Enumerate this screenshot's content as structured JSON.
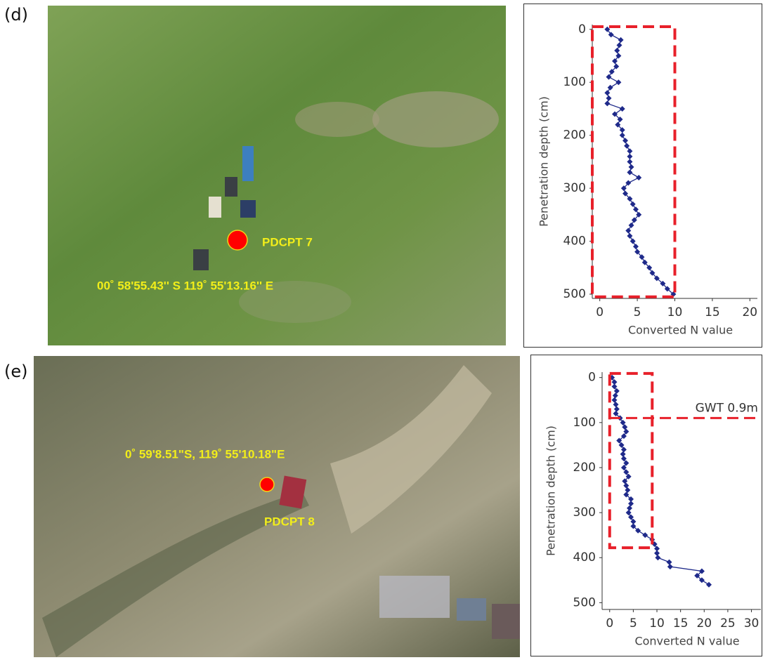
{
  "chart_data": [
    {
      "type": "line",
      "panel": "(d)",
      "x_label": "Converted N value",
      "y_label": "Penetration depth (cm)",
      "color": "#1f2a8a",
      "x": [
        1.0,
        1.5,
        2.8,
        2.6,
        2.3,
        2.5,
        2.0,
        2.2,
        1.6,
        1.2,
        2.5,
        1.4,
        1.0,
        1.2,
        1.0,
        3.0,
        2.0,
        2.7,
        2.4,
        3.0,
        3.0,
        3.4,
        3.6,
        4.0,
        4.0,
        4.0,
        4.2,
        4.0,
        5.2,
        3.8,
        3.2,
        3.4,
        4.0,
        4.4,
        4.8,
        5.2,
        4.6,
        4.2,
        3.8,
        4.0,
        4.4,
        4.8,
        5.0,
        5.6,
        6.0,
        6.6,
        7.0,
        7.6,
        8.4,
        9.0,
        9.8
      ],
      "y": [
        0,
        10,
        20,
        30,
        40,
        50,
        60,
        70,
        80,
        90,
        100,
        110,
        120,
        130,
        140,
        150,
        160,
        170,
        180,
        190,
        200,
        210,
        220,
        230,
        240,
        250,
        260,
        270,
        280,
        290,
        300,
        310,
        320,
        330,
        340,
        350,
        360,
        370,
        380,
        390,
        400,
        410,
        420,
        430,
        440,
        450,
        460,
        470,
        480,
        490,
        500
      ],
      "xlim": [
        -1,
        21
      ],
      "ylim": [
        -9,
        508
      ],
      "y_inverted": true,
      "xticks": [
        0,
        5,
        10,
        15,
        20
      ],
      "yticks": [
        0,
        100,
        200,
        300,
        400,
        500
      ],
      "highlight_boxes": [
        {
          "x": [
            -1,
            10
          ],
          "y": [
            -5,
            505
          ]
        }
      ]
    },
    {
      "type": "line",
      "panel": "(e)",
      "x_label": "Converted N value",
      "y_label": "Penetration depth (cm)",
      "color": "#1f2a8a",
      "x": [
        0.5,
        1.0,
        1.0,
        1.5,
        1.2,
        1.0,
        1.3,
        1.5,
        1.3,
        2.2,
        2.8,
        3.2,
        3.5,
        3.0,
        2.0,
        2.5,
        3.0,
        2.8,
        3.0,
        3.5,
        3.0,
        3.5,
        4.0,
        3.2,
        3.5,
        3.8,
        3.5,
        4.5,
        4.5,
        4.2,
        4.0,
        4.5,
        5.0,
        5.0,
        6.0,
        7.5,
        9.0,
        9.5,
        10.0,
        10.0,
        10.2,
        12.6,
        12.8,
        19.5,
        18.5,
        19.5,
        21.0
      ],
      "y": [
        0,
        10,
        20,
        30,
        40,
        50,
        60,
        70,
        80,
        90,
        100,
        110,
        120,
        130,
        140,
        150,
        160,
        170,
        180,
        190,
        200,
        210,
        220,
        230,
        240,
        250,
        260,
        270,
        280,
        290,
        300,
        310,
        320,
        330,
        340,
        350,
        360,
        370,
        380,
        390,
        400,
        410,
        420,
        430,
        440,
        450,
        460
      ],
      "xlim": [
        -1.6,
        32
      ],
      "ylim": [
        -12,
        515
      ],
      "y_inverted": true,
      "xticks": [
        0,
        5,
        10,
        15,
        20,
        25,
        30
      ],
      "yticks": [
        0,
        100,
        200,
        300,
        400,
        500
      ],
      "highlight_boxes": [
        {
          "x": [
            0,
            9
          ],
          "y": [
            -9,
            378
          ]
        }
      ],
      "reference_lines": [
        {
          "y": 90,
          "label": "GWT 0.9m"
        }
      ]
    }
  ],
  "photos": [
    {
      "panel": "(d)",
      "site": "PDCPT 7",
      "coordinates": "00˚  58'55.43'' S  119˚  55'13.16'' E"
    },
    {
      "panel": "(e)",
      "site": "PDCPT 8",
      "coordinates": "0˚  59'8.51\"S, 119˚  55'10.18\"E"
    }
  ]
}
